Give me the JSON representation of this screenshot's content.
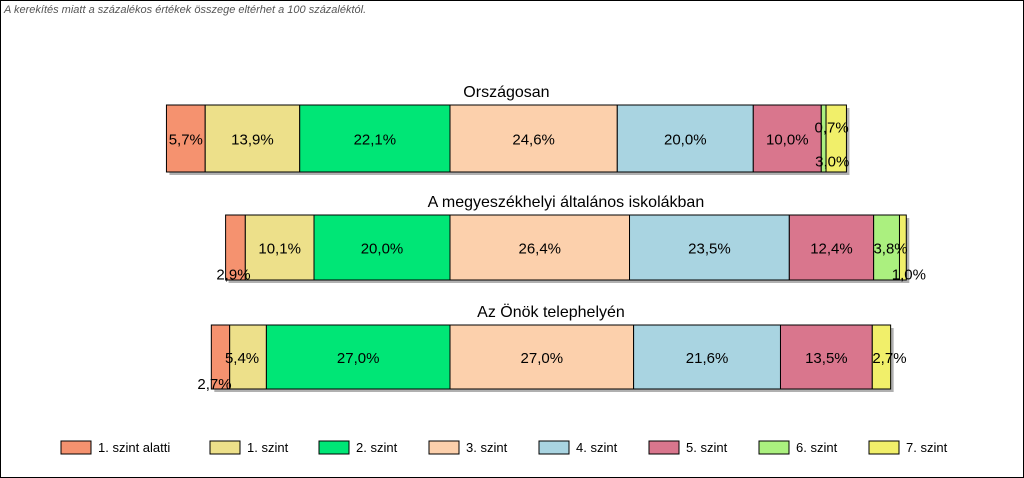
{
  "note": "A kerekítés miatt a  százalékos értékek összege eltérhet a 100 százaléktól.",
  "chart_data": {
    "type": "bar",
    "orientation": "horizontal",
    "stacked": "100%",
    "categories": [
      "1. szint alatti",
      "1. szint",
      "2. szint",
      "3. szint",
      "4. szint",
      "5. szint",
      "6. szint",
      "7. szint"
    ],
    "colors": [
      "#f5926f",
      "#ede08a",
      "#00e676",
      "#fcd0ac",
      "#a9d4e1",
      "#d9768d",
      "#abf07f",
      "#f1ef6a"
    ],
    "legend_position": "bottom",
    "groups": [
      {
        "title": "Országosan",
        "values": [
          5.7,
          13.9,
          22.1,
          24.6,
          20.0,
          10.0,
          0.7,
          3.0
        ],
        "labels": [
          "5,7%",
          "13,9%",
          "22,1%",
          "24,6%",
          "20,0%",
          "10,0%",
          "0,7%",
          "3,0%"
        ]
      },
      {
        "title": "A megyeszékhelyi általános iskolákban",
        "values": [
          2.9,
          10.1,
          20.0,
          26.4,
          23.5,
          12.4,
          3.8,
          1.0
        ],
        "labels": [
          "2,9%",
          "10,1%",
          "20,0%",
          "26,4%",
          "23,5%",
          "12,4%",
          "3,8%",
          "1,0%"
        ]
      },
      {
        "title": "Az Önök telephelyén",
        "values": [
          2.7,
          5.4,
          27.0,
          27.0,
          21.6,
          13.5,
          0.0,
          2.7
        ],
        "labels": [
          "2,7%",
          "5,4%",
          "27,0%",
          "27,0%",
          "21,6%",
          "13,5%",
          "",
          "2,7%"
        ]
      }
    ]
  }
}
